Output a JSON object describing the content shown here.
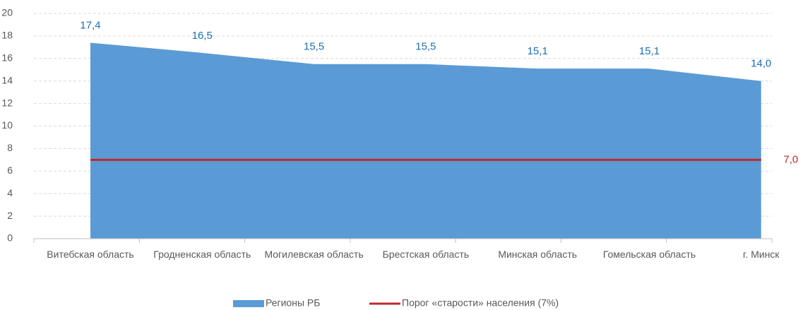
{
  "chart_data": {
    "type": "area",
    "categories": [
      "Витебская область",
      "Гродненская область",
      "Могилевская область",
      "Брестская область",
      "Минская область",
      "Гомельская область",
      "г. Минск"
    ],
    "series": [
      {
        "name": "Регионы РБ",
        "type": "area",
        "color": "#5b9bd5",
        "label_color": "#1f6fb0",
        "values": [
          17.4,
          16.5,
          15.5,
          15.5,
          15.1,
          15.1,
          14.0
        ],
        "value_labels": [
          "17,4",
          "16,5",
          "15,5",
          "15,5",
          "15,1",
          "15,1",
          "14,0"
        ]
      },
      {
        "name": "Порог «старости» населения (7%)",
        "type": "line",
        "color": "#c0272d",
        "label_color": "#c0272d",
        "values": [
          7.0,
          7.0,
          7.0,
          7.0,
          7.0,
          7.0,
          7.0
        ],
        "value_labels": [
          null,
          null,
          null,
          null,
          null,
          null,
          "7,0"
        ]
      }
    ],
    "ylim": [
      0,
      20
    ],
    "yticks": [
      0,
      2,
      4,
      6,
      8,
      10,
      12,
      14,
      16,
      18,
      20
    ],
    "grid": true,
    "legend": "bottom"
  }
}
